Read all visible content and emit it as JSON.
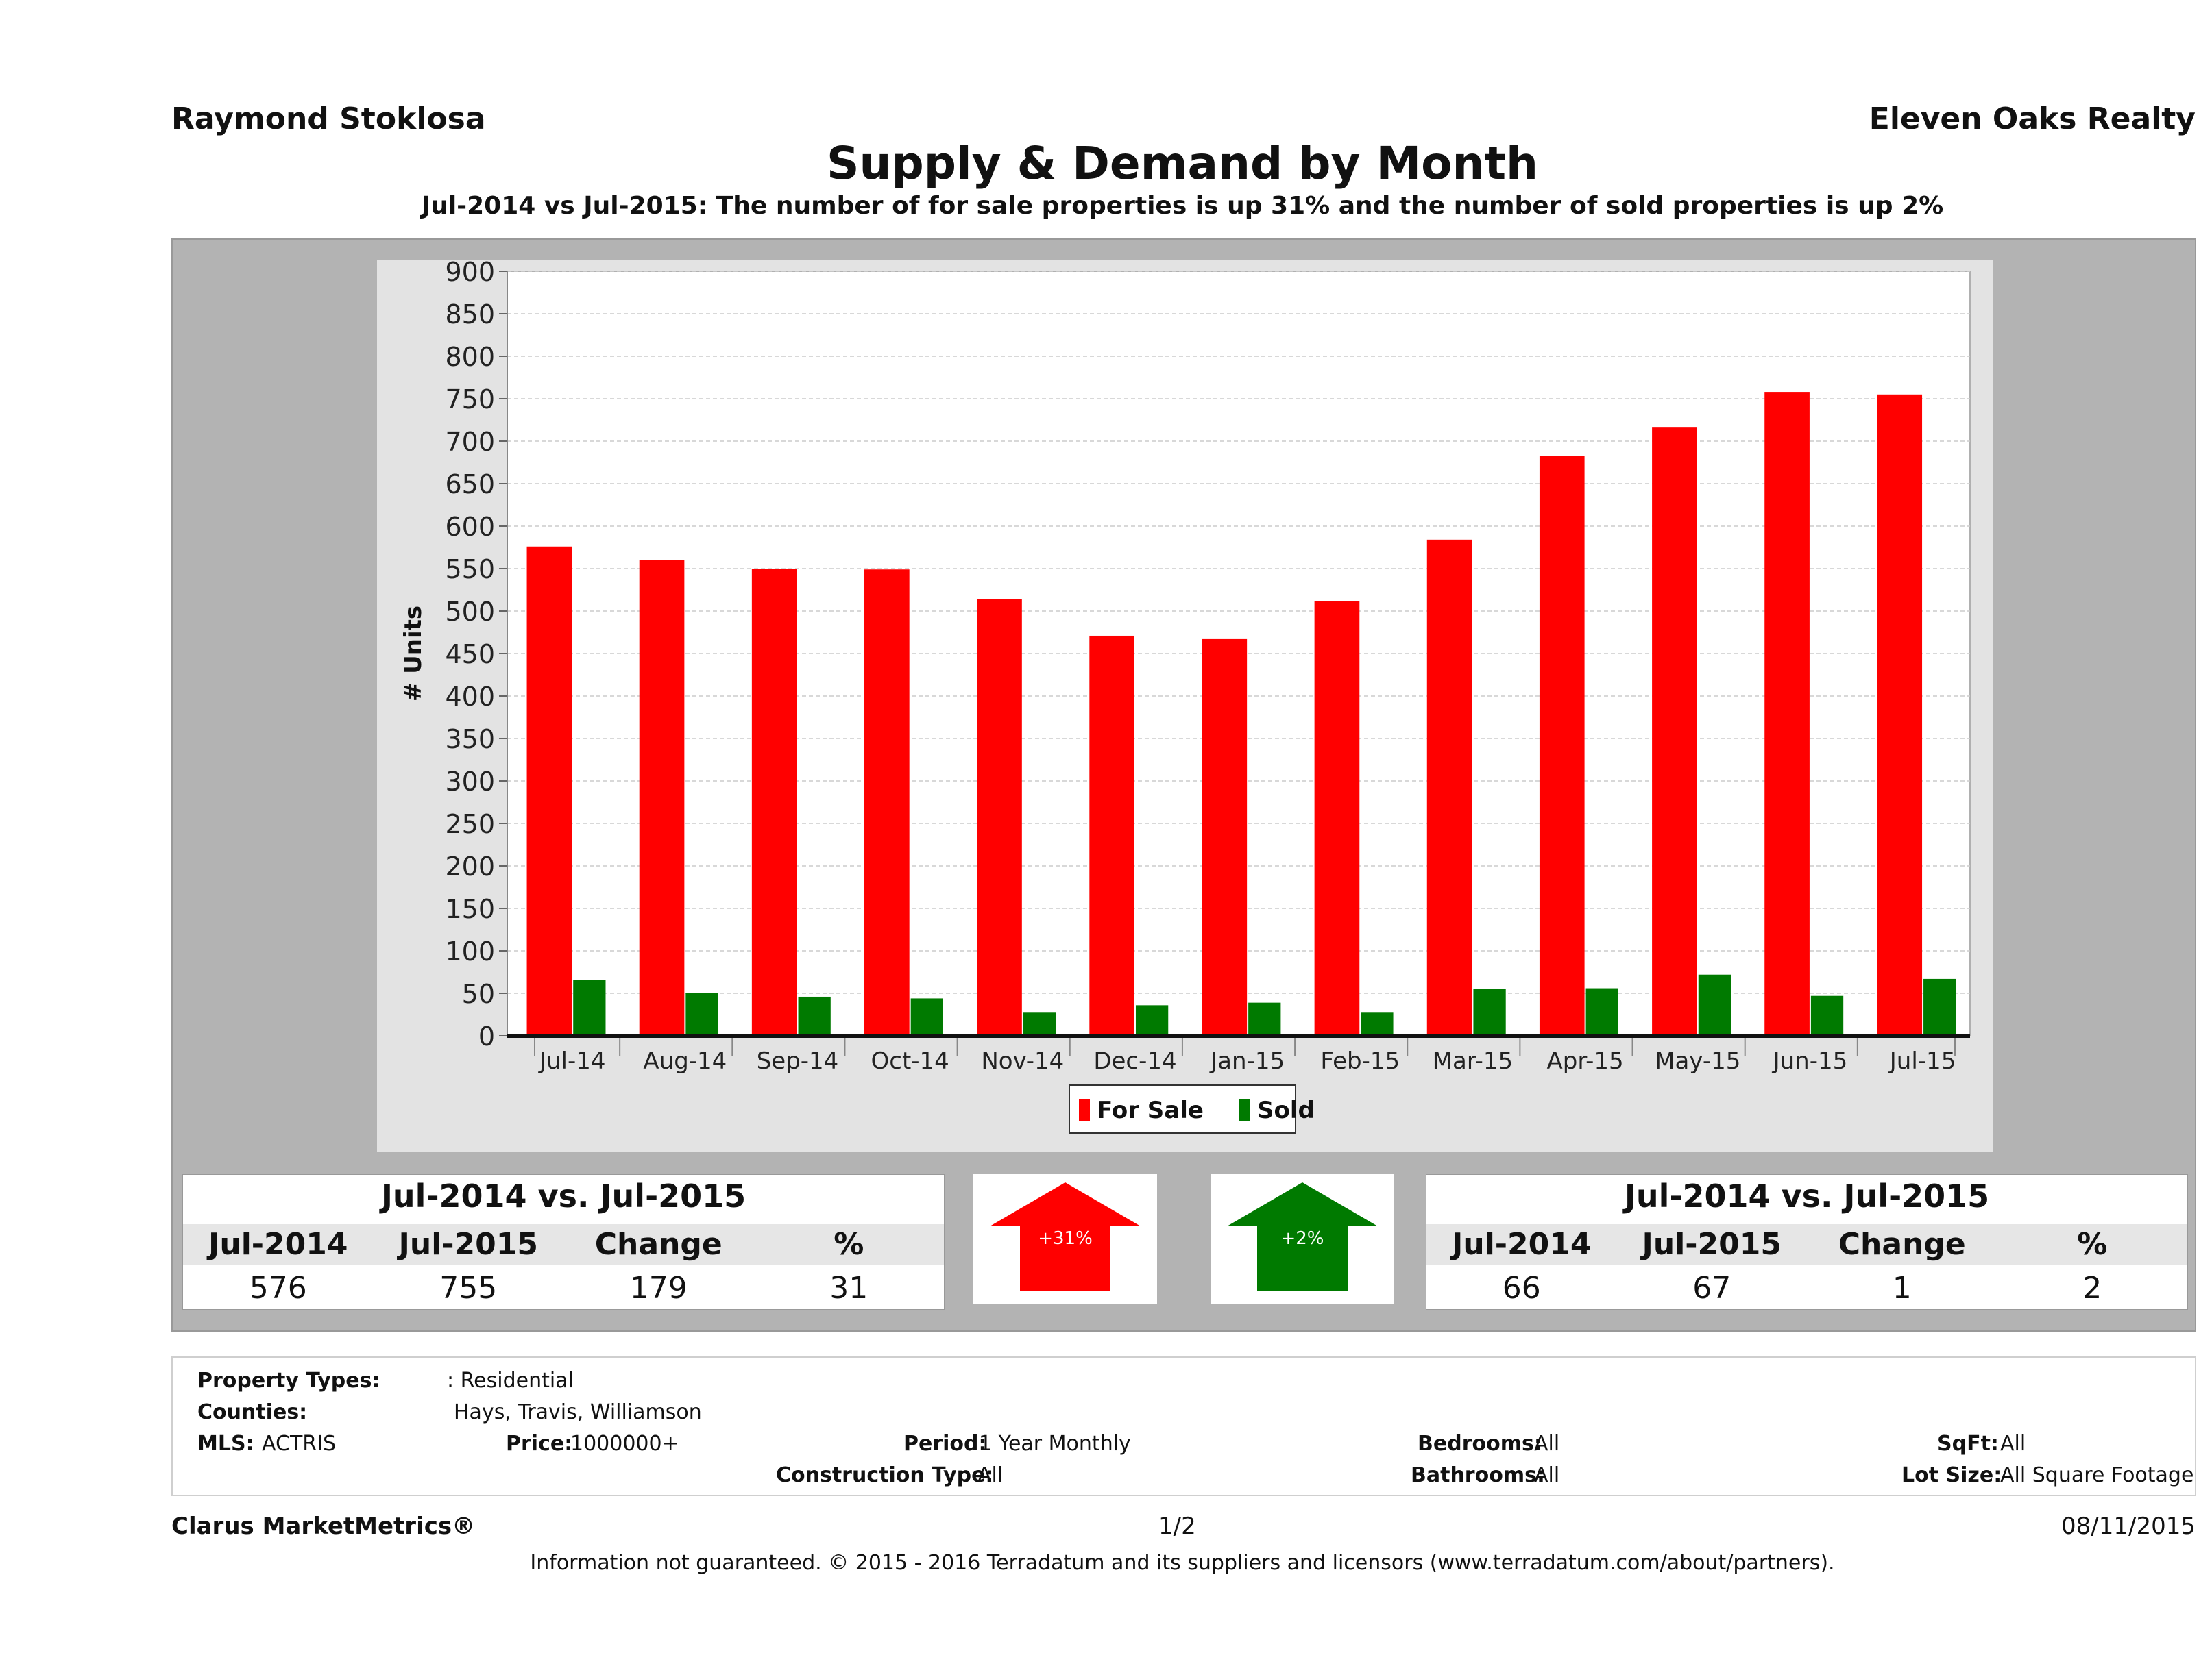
{
  "header": {
    "agent": "Raymond Stoklosa",
    "company": "Eleven Oaks Realty"
  },
  "chart_data": {
    "type": "bar",
    "title": "Supply & Demand by Month",
    "subtitle": "Jul-2014 vs Jul-2015: The number of for sale properties is up 31% and the number of sold properties is up 2%",
    "xlabel": "",
    "ylabel": "# Units",
    "ylim": [
      0,
      900
    ],
    "yticks": [
      0,
      50,
      100,
      150,
      200,
      250,
      300,
      350,
      400,
      450,
      500,
      550,
      600,
      650,
      700,
      750,
      800,
      850,
      900
    ],
    "grid": true,
    "legend_position": "bottom",
    "categories": [
      "Jul-14",
      "Aug-14",
      "Sep-14",
      "Oct-14",
      "Nov-14",
      "Dec-14",
      "Jan-15",
      "Feb-15",
      "Mar-15",
      "Apr-15",
      "May-15",
      "Jun-15",
      "Jul-15"
    ],
    "series": [
      {
        "name": "For Sale",
        "color": "#ff0000",
        "values": [
          576,
          560,
          550,
          549,
          514,
          471,
          467,
          512,
          584,
          683,
          716,
          758,
          755
        ]
      },
      {
        "name": "Sold",
        "color": "#007a00",
        "values": [
          66,
          50,
          46,
          44,
          28,
          36,
          39,
          28,
          55,
          56,
          72,
          47,
          67
        ]
      }
    ]
  },
  "for_sale_table": {
    "title": "Jul-2014 vs. Jul-2015",
    "headers": [
      "Jul-2014",
      "Jul-2015",
      "Change",
      "%"
    ],
    "values": [
      "576",
      "755",
      "179",
      "31"
    ]
  },
  "sold_table": {
    "title": "Jul-2014 vs. Jul-2015",
    "headers": [
      "Jul-2014",
      "Jul-2015",
      "Change",
      "%"
    ],
    "values": [
      "66",
      "67",
      "1",
      "2"
    ]
  },
  "arrows": {
    "for_sale": {
      "label": "+31%",
      "color": "#ff0000"
    },
    "sold": {
      "label": "+2%",
      "color": "#007a00"
    }
  },
  "filters": {
    "property_types_label": "Property Types:",
    "property_types": ": Residential",
    "counties_label": "Counties:",
    "counties": "Hays, Travis, Williamson",
    "mls_label": "MLS:",
    "mls": "ACTRIS",
    "price_label": "Price:",
    "price": "1000000+",
    "period_label": "Period:",
    "period": "1 Year Monthly",
    "construction_label": "Construction Type:",
    "construction": "All",
    "bedrooms_label": "Bedrooms:",
    "bedrooms": "All",
    "bathrooms_label": "Bathrooms:",
    "bathrooms": "All",
    "sqft_label": "SqFt:",
    "sqft": "All",
    "lot_label": "Lot Size:",
    "lot": "All Square Footage"
  },
  "footer": {
    "brand": "Clarus MarketMetrics®",
    "page": "1/2",
    "date": "08/11/2015",
    "disclaimer": "Information not guaranteed. © 2015 - 2016 Terradatum and its suppliers and licensors (www.terradatum.com/about/partners)."
  }
}
